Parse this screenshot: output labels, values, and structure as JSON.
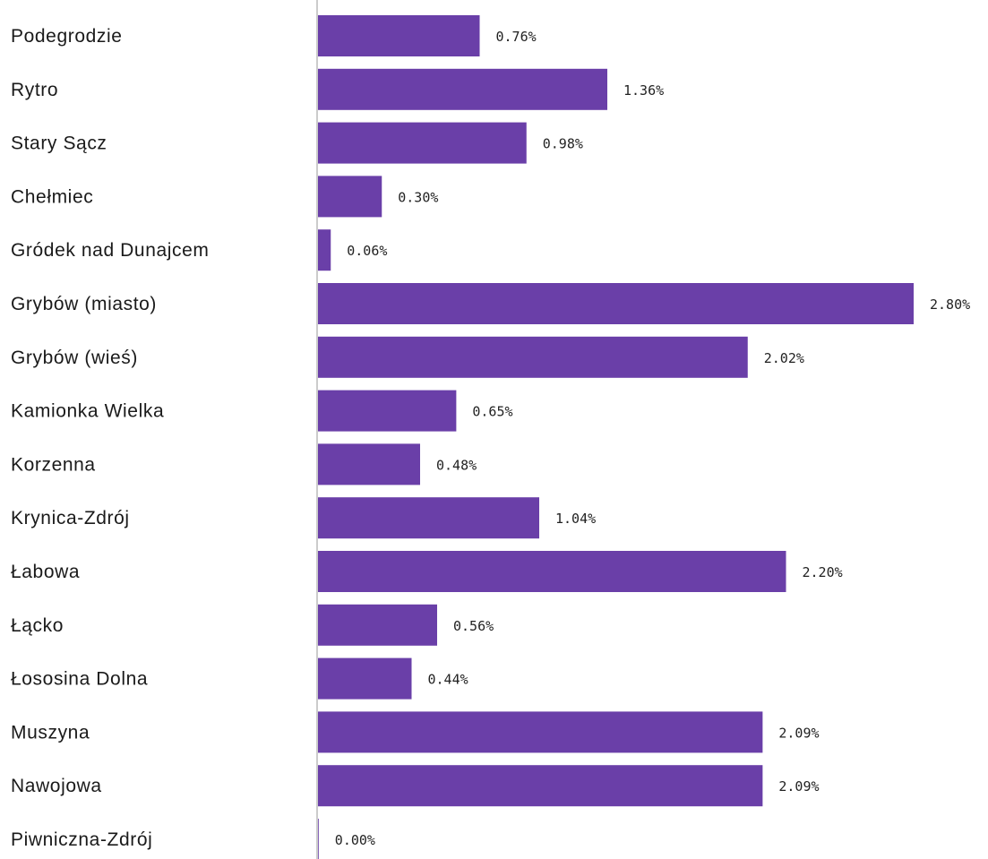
{
  "chart_data": {
    "type": "bar",
    "orientation": "horizontal",
    "categories": [
      "Podegrodzie",
      "Rytro",
      "Stary Sącz",
      "Chełmiec",
      "Gródek nad Dunajcem",
      "Grybów (miasto)",
      "Grybów (wieś)",
      "Kamionka Wielka",
      "Korzenna",
      "Krynica-Zdrój",
      "Łabowa",
      "Łącko",
      "Łososina Dolna",
      "Muszyna",
      "Nawojowa",
      "Piwniczna-Zdrój"
    ],
    "values": [
      0.76,
      1.36,
      0.98,
      0.3,
      0.06,
      2.8,
      2.02,
      0.65,
      0.48,
      1.04,
      2.2,
      0.56,
      0.44,
      2.09,
      2.09,
      0.0
    ],
    "value_labels": [
      "0.76%",
      "1.36%",
      "0.98%",
      "0.30%",
      "0.06%",
      "2.80%",
      "2.02%",
      "0.65%",
      "0.48%",
      "1.04%",
      "2.20%",
      "0.56%",
      "0.44%",
      "2.09%",
      "2.09%",
      "0.00%"
    ],
    "xlim": [
      0,
      2.8
    ],
    "bar_color": "#6a3fa8",
    "axis_color": "#9a9a9a",
    "grid": false,
    "legend": "none"
  }
}
